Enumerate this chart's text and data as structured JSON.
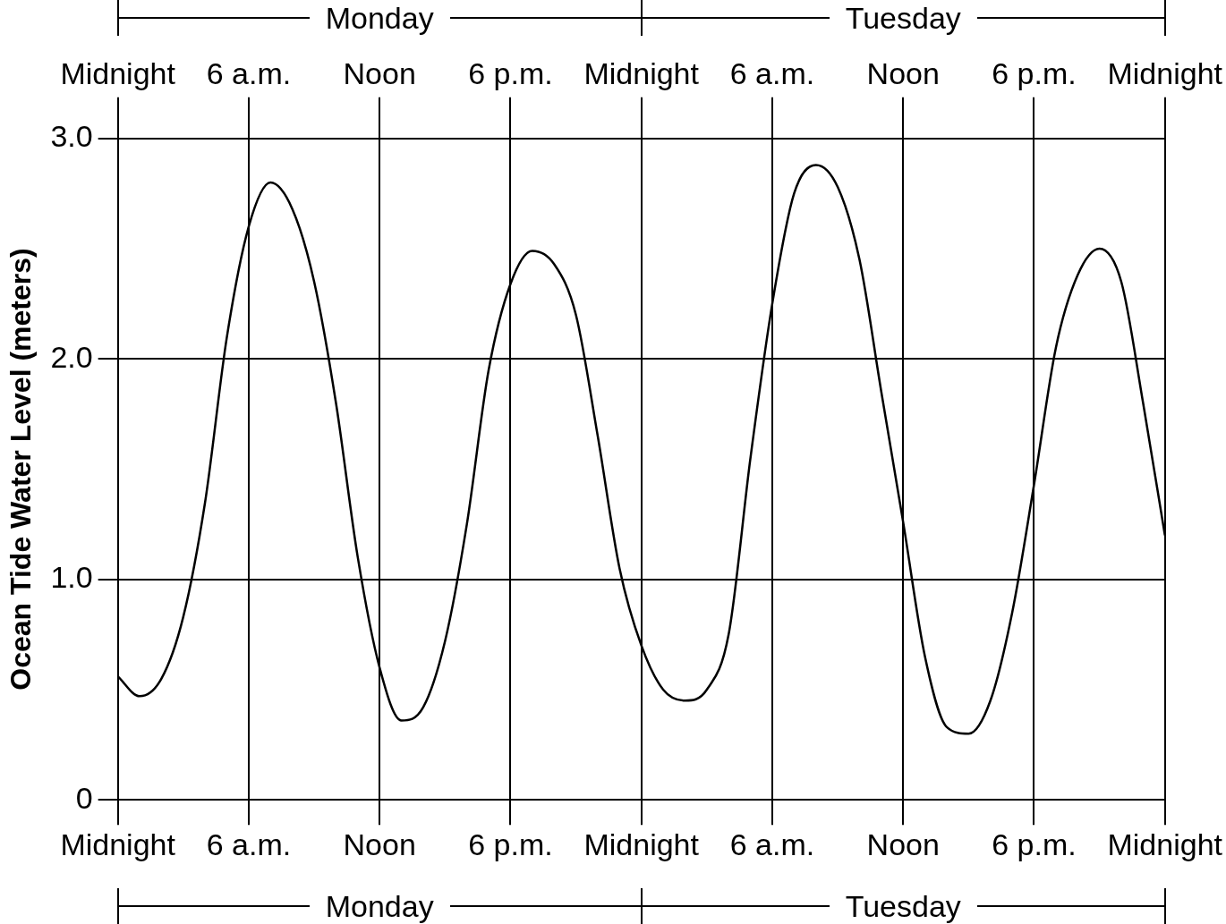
{
  "chart_data": {
    "type": "line",
    "ylabel": "Ocean Tide Water Level (meters)",
    "categories": [
      "Midnight",
      null,
      null,
      null,
      null,
      null,
      "6 a.m.",
      null,
      null,
      null,
      null,
      null,
      "Noon",
      null,
      null,
      null,
      null,
      null,
      "6 p.m.",
      null,
      null,
      null,
      null,
      null,
      "Midnight",
      null,
      null,
      null,
      null,
      null,
      "6 a.m.",
      null,
      null,
      null,
      null,
      null,
      "Noon",
      null,
      null,
      null,
      null,
      null,
      "6 p.m.",
      null,
      null,
      null,
      null,
      null,
      "Midnight"
    ],
    "series": [
      {
        "color": "#000000",
        "values": [
          0.56,
          0.47,
          0.55,
          0.83,
          1.35,
          2.1,
          2.6,
          2.8,
          2.68,
          2.35,
          1.8,
          1.1,
          0.6,
          0.36,
          0.42,
          0.72,
          1.25,
          1.95,
          2.34,
          2.49,
          2.43,
          2.2,
          1.65,
          1.05,
          0.7,
          0.5,
          0.45,
          0.5,
          0.75,
          1.55,
          2.25,
          2.75,
          2.88,
          2.78,
          2.45,
          1.85,
          1.26,
          0.65,
          0.33,
          0.3,
          0.45,
          0.85,
          1.43,
          2.05,
          2.38,
          2.5,
          2.35,
          1.8,
          1.2
        ]
      }
    ],
    "ylim": [
      0,
      3.0
    ],
    "yticks": [
      {
        "value": 0,
        "label": "0"
      },
      {
        "value": 1,
        "label": "1.0"
      },
      {
        "value": 2,
        "label": "2.0"
      },
      {
        "value": 3,
        "label": "3.0"
      }
    ],
    "grid": true,
    "marker": "none",
    "line_style": "solid",
    "annotations": [
      "Monday",
      "Tuesday"
    ]
  }
}
